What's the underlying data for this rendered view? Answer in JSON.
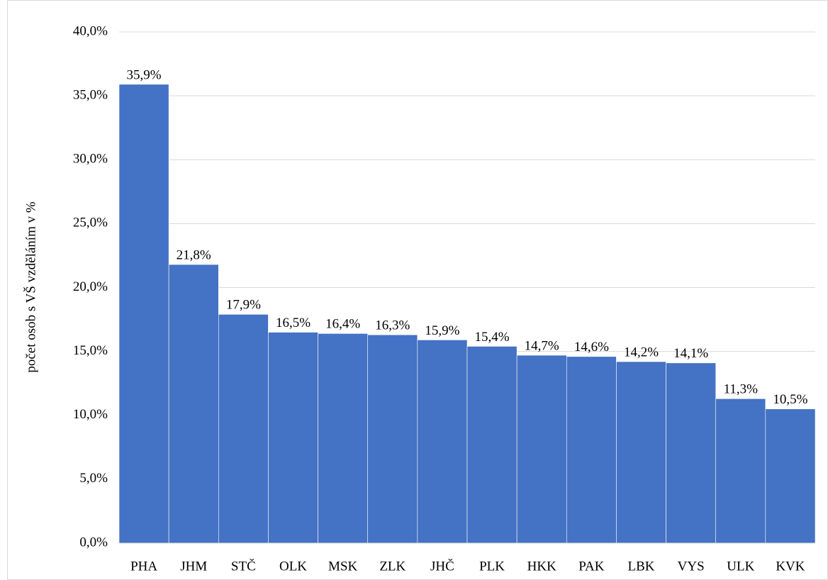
{
  "chart_data": {
    "type": "bar",
    "y_label": "počet osob s VŠ vzděláním v %",
    "categories": [
      "PHA",
      "JHM",
      "STČ",
      "OLK",
      "MSK",
      "ZLK",
      "JHČ",
      "PLK",
      "HKK",
      "PAK",
      "LBK",
      "VYS",
      "ULK",
      "KVK"
    ],
    "values": [
      35.9,
      21.8,
      17.9,
      16.5,
      16.4,
      16.3,
      15.9,
      15.4,
      14.7,
      14.6,
      14.2,
      14.1,
      11.3,
      10.5
    ],
    "value_labels": [
      "35,9%",
      "21,8%",
      "17,9%",
      "16,5%",
      "16,4%",
      "16,3%",
      "15,9%",
      "15,4%",
      "14,7%",
      "14,6%",
      "14,2%",
      "14,1%",
      "11,3%",
      "10,5%"
    ],
    "color": "#4472c4",
    "ylim": [
      0,
      40
    ],
    "yticks": [
      {
        "value": 0,
        "label": "0,0%"
      },
      {
        "value": 5,
        "label": "5,0%"
      },
      {
        "value": 10,
        "label": "10,0%"
      },
      {
        "value": 15,
        "label": "15,0%"
      },
      {
        "value": 20,
        "label": "20,0%"
      },
      {
        "value": 25,
        "label": "25,0%"
      },
      {
        "value": 30,
        "label": "30,0%"
      },
      {
        "value": 35,
        "label": "35,0%"
      },
      {
        "value": 40,
        "label": "40,0%"
      }
    ],
    "grid": true
  }
}
